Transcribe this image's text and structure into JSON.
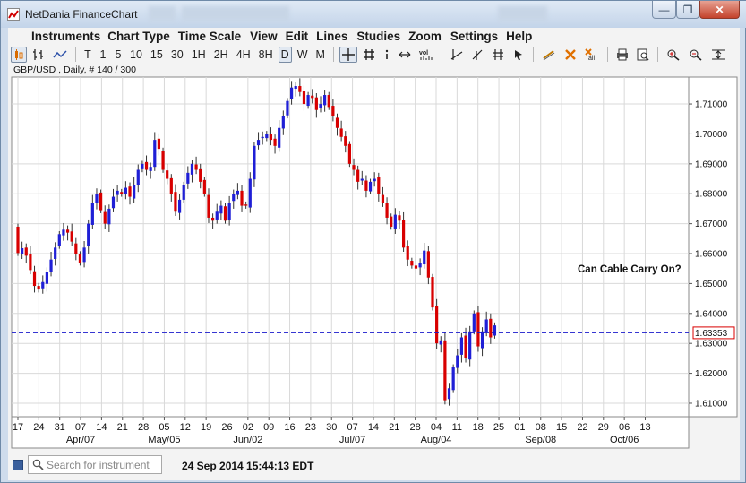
{
  "window": {
    "title": "NetDania FinanceChart",
    "buttons": {
      "minimize": "—",
      "restore": "❐",
      "close": "✕"
    }
  },
  "menu": [
    "Instruments",
    "Chart Type",
    "Time Scale",
    "View",
    "Edit",
    "Lines",
    "Studies",
    "Zoom",
    "Settings",
    "Help"
  ],
  "toolbar": {
    "intervals": [
      "T",
      "1",
      "5",
      "10",
      "15",
      "30",
      "1H",
      "2H",
      "4H",
      "8H",
      "D",
      "W",
      "M"
    ],
    "selected_interval": "D"
  },
  "chart": {
    "header": "GBP/USD , Daily, # 140 / 300",
    "annotation": "Can Cable Carry On?",
    "current_price_label": "1.63353",
    "y_tick_labels": [
      "1.71000",
      "1.70000",
      "1.69000",
      "1.68000",
      "1.67000",
      "1.66000",
      "1.65000",
      "1.64000",
      "1.63000",
      "1.62000",
      "1.61000"
    ],
    "x_tick_labels": [
      "17",
      "24",
      "31",
      "07",
      "14",
      "21",
      "28",
      "05",
      "12",
      "19",
      "26",
      "02",
      "09",
      "16",
      "23",
      "30",
      "07",
      "14",
      "21",
      "28",
      "04",
      "11",
      "18",
      "25",
      "01",
      "08",
      "15",
      "22",
      "29",
      "06",
      "13"
    ],
    "month_labels": [
      "Apr/07",
      "May/05",
      "Jun/02",
      "Jul/07",
      "Aug/04",
      "Sep/08",
      "Oct/06"
    ],
    "colors": {
      "up": "#1f1fd6",
      "down": "#d80000",
      "current_line": "#1a1acc",
      "grid": "#d9d9d9"
    }
  },
  "chart_data": {
    "type": "candlestick",
    "instrument": "GBP/USD",
    "ylim": [
      1.6055,
      1.719
    ],
    "current_price": 1.63353,
    "grid": true,
    "closes": [
      1.6602,
      1.6618,
      1.6593,
      1.6545,
      1.6492,
      1.648,
      1.6505,
      1.654,
      1.658,
      1.662,
      1.6665,
      1.668,
      1.667,
      1.664,
      1.66,
      1.657,
      1.662,
      1.67,
      1.677,
      1.68,
      1.6745,
      1.67,
      1.675,
      1.679,
      1.681,
      1.68,
      1.682,
      1.679,
      1.683,
      1.688,
      1.69,
      1.688,
      1.689,
      1.698,
      1.695,
      1.688,
      1.685,
      1.68,
      1.674,
      1.678,
      1.683,
      1.687,
      1.69,
      1.688,
      1.684,
      1.68,
      1.672,
      1.671,
      1.674,
      1.676,
      1.671,
      1.677,
      1.68,
      1.681,
      1.676,
      1.676,
      1.685,
      1.696,
      1.698,
      1.699,
      1.7,
      1.698,
      1.696,
      1.702,
      1.706,
      1.711,
      1.7155,
      1.716,
      1.714,
      1.71,
      1.713,
      1.712,
      1.708,
      1.71,
      1.713,
      1.709,
      1.706,
      1.702,
      1.699,
      1.696,
      1.69,
      1.688,
      1.684,
      1.685,
      1.681,
      1.684,
      1.685,
      1.68,
      1.677,
      1.672,
      1.669,
      1.673,
      1.671,
      1.662,
      1.658,
      1.656,
      1.655,
      1.657,
      1.661,
      1.652,
      1.642,
      1.63,
      1.631,
      1.611,
      1.615,
      1.622,
      1.626,
      1.632,
      1.625,
      1.634,
      1.64,
      1.629,
      1.634,
      1.638,
      1.632,
      1.636
    ]
  }
}
